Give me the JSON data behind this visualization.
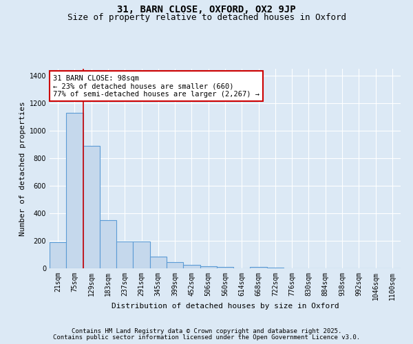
{
  "title1": "31, BARN CLOSE, OXFORD, OX2 9JP",
  "title2": "Size of property relative to detached houses in Oxford",
  "xlabel": "Distribution of detached houses by size in Oxford",
  "ylabel": "Number of detached properties",
  "categories": [
    "21sqm",
    "75sqm",
    "129sqm",
    "183sqm",
    "237sqm",
    "291sqm",
    "345sqm",
    "399sqm",
    "452sqm",
    "506sqm",
    "560sqm",
    "614sqm",
    "668sqm",
    "722sqm",
    "776sqm",
    "830sqm",
    "884sqm",
    "938sqm",
    "992sqm",
    "1046sqm",
    "1100sqm"
  ],
  "values": [
    190,
    1130,
    890,
    350,
    195,
    195,
    85,
    45,
    25,
    17,
    8,
    0,
    10,
    5,
    0,
    0,
    0,
    0,
    0,
    0,
    0
  ],
  "bar_color": "#c5d8ec",
  "bar_edge_color": "#5b9bd5",
  "background_color": "#dce9f5",
  "plot_bg_color": "#dce9f5",
  "grid_color": "#ffffff",
  "annotation_text": "31 BARN CLOSE: 98sqm\n← 23% of detached houses are smaller (660)\n77% of semi-detached houses are larger (2,267) →",
  "annotation_box_color": "#ffffff",
  "annotation_box_edge": "#cc0000",
  "vline_x": 1.5,
  "vline_color": "#cc0000",
  "ylim": [
    0,
    1450
  ],
  "yticks": [
    0,
    200,
    400,
    600,
    800,
    1000,
    1200,
    1400
  ],
  "footer1": "Contains HM Land Registry data © Crown copyright and database right 2025.",
  "footer2": "Contains public sector information licensed under the Open Government Licence v3.0.",
  "title1_fontsize": 10,
  "title2_fontsize": 9,
  "xlabel_fontsize": 8,
  "ylabel_fontsize": 8,
  "tick_fontsize": 7,
  "annotation_fontsize": 7.5,
  "footer_fontsize": 6.5
}
